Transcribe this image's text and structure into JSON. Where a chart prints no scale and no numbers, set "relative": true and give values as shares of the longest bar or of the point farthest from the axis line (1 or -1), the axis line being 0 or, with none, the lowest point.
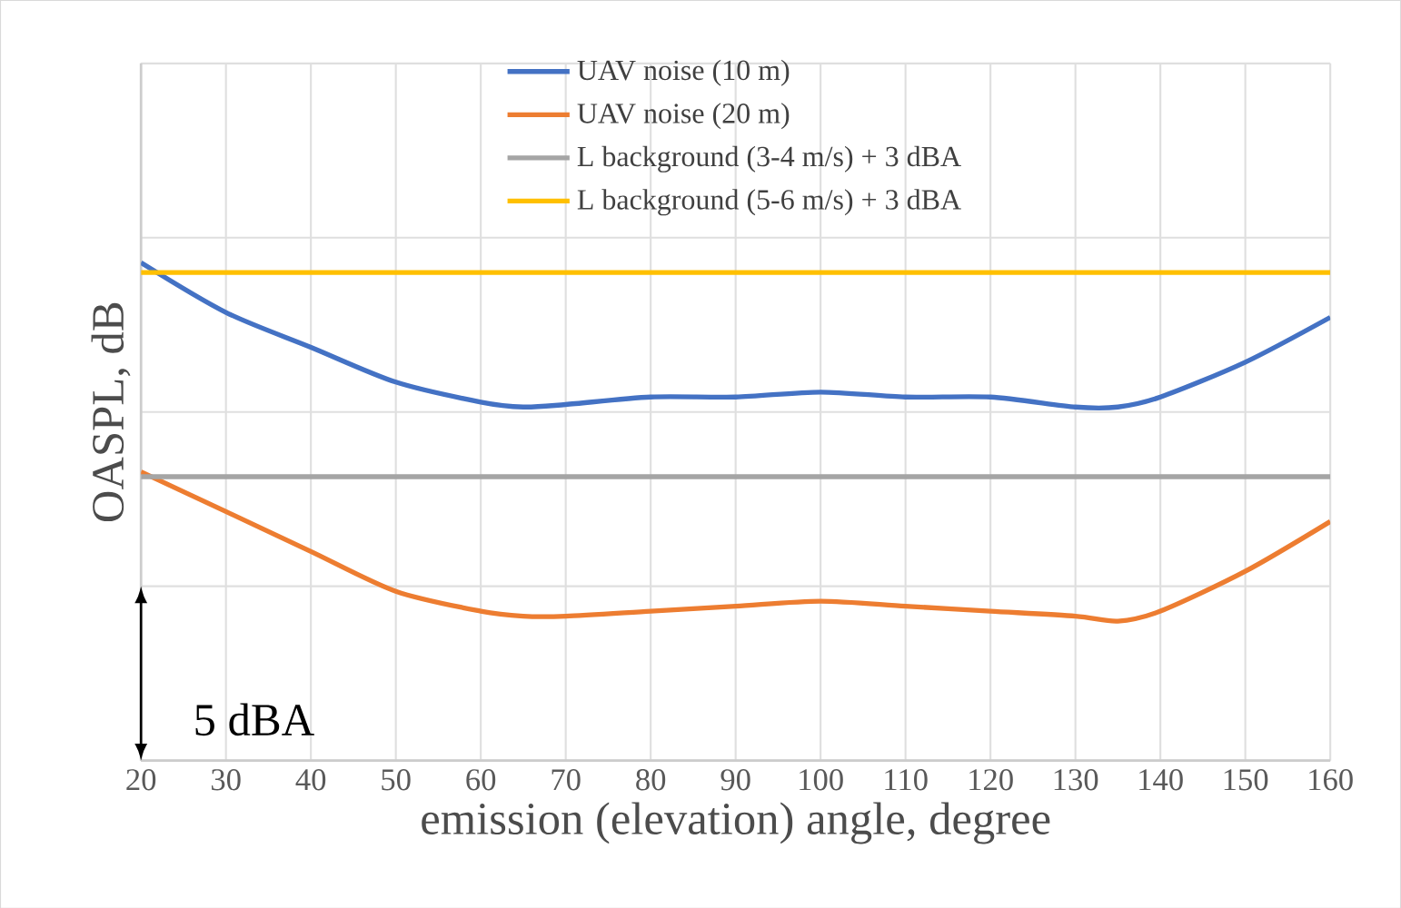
{
  "chart_data": {
    "type": "line",
    "relative": true,
    "xlabel": "emission (elevation) angle, degree",
    "ylabel": "OASPL, dB",
    "x": [
      20,
      30,
      40,
      50,
      60,
      65,
      70,
      80,
      90,
      100,
      110,
      120,
      130,
      135,
      140,
      150,
      160
    ],
    "xlim": [
      20,
      160
    ],
    "xticks": [
      20,
      30,
      40,
      50,
      60,
      70,
      80,
      90,
      100,
      110,
      120,
      130,
      140,
      150,
      160
    ],
    "grid": true,
    "legend": "top",
    "marker": "none",
    "line_style": "solid",
    "annotations": [
      "5 dBA"
    ],
    "series": [
      {
        "name": "UAV noise (10 m)",
        "color": "#4472c4",
        "values": [
          1,
          0.9,
          0.83,
          0.76,
          0.72,
          0.71,
          0.715,
          0.73,
          0.73,
          0.74,
          0.73,
          0.73,
          0.71,
          0.71,
          0.73,
          0.8,
          0.89
        ]
      },
      {
        "name": "UAV noise (20 m)",
        "color": "#ed7d31",
        "values": [
          0.58,
          0.5,
          0.42,
          0.34,
          0.3,
          0.29,
          0.29,
          0.3,
          0.31,
          0.32,
          0.31,
          0.3,
          0.29,
          0.28,
          0.3,
          0.38,
          0.48
        ]
      },
      {
        "name": "L background (3-4 m/s) + 3 dBA",
        "color": "#a5a5a5",
        "values": [
          0.57,
          0.57,
          0.57,
          0.57,
          0.57,
          0.57,
          0.57,
          0.57,
          0.57,
          0.57,
          0.57,
          0.57,
          0.57,
          0.57,
          0.57,
          0.57,
          0.57
        ]
      },
      {
        "name": "L background (5-6 m/s) + 3 dBA",
        "color": "#ffc000",
        "values": [
          0.98,
          0.98,
          0.98,
          0.98,
          0.98,
          0.98,
          0.98,
          0.98,
          0.98,
          0.98,
          0.98,
          0.98,
          0.98,
          0.98,
          0.98,
          0.98,
          0.98
        ]
      }
    ]
  }
}
